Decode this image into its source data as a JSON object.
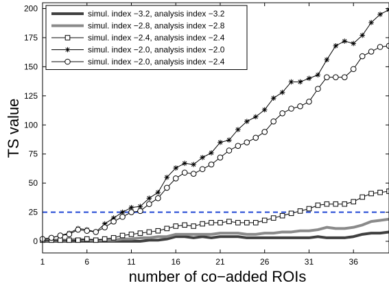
{
  "chart_data": {
    "type": "line",
    "xlabel": "number of co−added ROIs",
    "ylabel": "TS value",
    "xlim": [
      1,
      40
    ],
    "ylim": [
      -10,
      205
    ],
    "x_ticks": [
      1,
      6,
      11,
      16,
      21,
      26,
      31,
      36
    ],
    "y_ticks": [
      0,
      25,
      50,
      75,
      100,
      125,
      150,
      175,
      200
    ],
    "grid": false,
    "legend_position": "top-left",
    "threshold": {
      "value": 25,
      "color": "#2b4fd6",
      "style": "dashed"
    },
    "x": [
      1,
      2,
      3,
      4,
      5,
      6,
      7,
      8,
      9,
      10,
      11,
      12,
      13,
      14,
      15,
      16,
      17,
      18,
      19,
      20,
      21,
      22,
      23,
      24,
      25,
      26,
      27,
      28,
      29,
      30,
      31,
      32,
      33,
      34,
      35,
      36,
      37,
      38,
      39,
      40
    ],
    "series": [
      {
        "name": "simul. index −3.2, analysis index −3.2",
        "color": "#404040",
        "stroke_width": 4,
        "marker": "none",
        "values": [
          0,
          0,
          0,
          0,
          0,
          0,
          0,
          0,
          0,
          0,
          0,
          0,
          1,
          1,
          2,
          4,
          4,
          3,
          4,
          3,
          4,
          4,
          4,
          3,
          3,
          3,
          3,
          3,
          3,
          3,
          3,
          4,
          3,
          3,
          3,
          4,
          6,
          7,
          7,
          8
        ]
      },
      {
        "name": "simul. index −2.8, analysis index −2.8",
        "color": "#8a8a8a",
        "stroke_width": 4,
        "marker": "none",
        "values": [
          1,
          1,
          1,
          1,
          2,
          1,
          1,
          1,
          1,
          2,
          2,
          3,
          3,
          4,
          4,
          6,
          6,
          6,
          6,
          6,
          7,
          7,
          7,
          6,
          6,
          7,
          7,
          8,
          8,
          9,
          9,
          10,
          12,
          11,
          11,
          12,
          14,
          17,
          18,
          19
        ]
      },
      {
        "name": "simul. index −2.4, analysis index −2.4",
        "color": "#000000",
        "stroke_width": 1,
        "marker": "square",
        "values": [
          1,
          1,
          1,
          1,
          1,
          2,
          1,
          2,
          3,
          5,
          6,
          7,
          8,
          9,
          11,
          13,
          14,
          13,
          15,
          16,
          16,
          17,
          16,
          16,
          16,
          18,
          20,
          22,
          24,
          26,
          28,
          31,
          32,
          32,
          32,
          34,
          38,
          41,
          42,
          43
        ]
      },
      {
        "name": "simul. index −2.0, analysis index −2.0",
        "color": "#000000",
        "stroke_width": 1,
        "marker": "star",
        "values": [
          2,
          3,
          5,
          7,
          11,
          10,
          8,
          15,
          20,
          25,
          29,
          30,
          37,
          42,
          55,
          63,
          67,
          66,
          72,
          76,
          85,
          87,
          96,
          103,
          107,
          113,
          123,
          128,
          137,
          137,
          140,
          143,
          156,
          168,
          172,
          170,
          177,
          188,
          195,
          199
        ]
      },
      {
        "name": "simul. index −2.0, analysis index −2.4",
        "color": "#000000",
        "stroke_width": 1,
        "marker": "circle",
        "values": [
          2,
          3,
          5,
          6,
          10,
          9,
          8,
          12,
          17,
          21,
          25,
          26,
          32,
          37,
          46,
          54,
          59,
          58,
          62,
          66,
          72,
          78,
          82,
          85,
          89,
          94,
          103,
          110,
          114,
          116,
          120,
          131,
          141,
          141,
          141,
          148,
          159,
          163,
          167,
          168
        ]
      }
    ]
  }
}
